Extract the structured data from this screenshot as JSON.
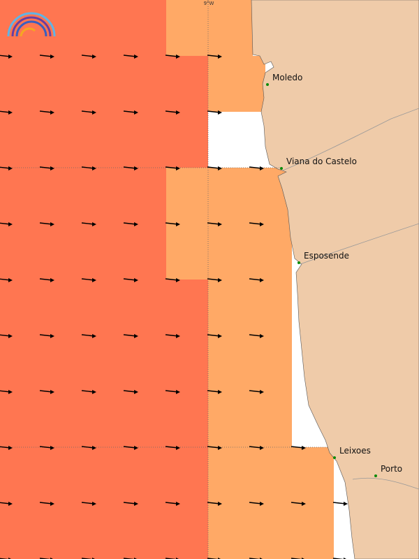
{
  "map": {
    "longitude_label": "9°W",
    "places": [
      {
        "name": "Moledo"
      },
      {
        "name": "Viana do Castelo"
      },
      {
        "name": "Esposende"
      },
      {
        "name": "Leixoes"
      },
      {
        "name": "Porto"
      }
    ]
  }
}
